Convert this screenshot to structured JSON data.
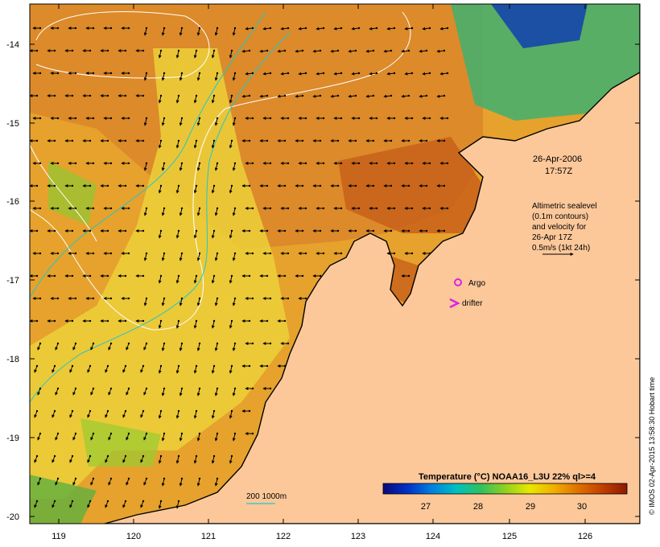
{
  "map": {
    "lon_ticks": [
      "119",
      "120",
      "121",
      "122",
      "123",
      "124",
      "125",
      "126"
    ],
    "lat_ticks": [
      "-14",
      "-15",
      "-16",
      "-17",
      "-18",
      "-19",
      "-20"
    ],
    "date_label": "26-Apr-2006",
    "time_label": "17:57Z",
    "altimetry_note": [
      "Altimetric sealevel",
      "(0.1m contours)",
      "and velocity for",
      "26-Apr 17Z",
      "0.5m/s (1kt 24h)"
    ],
    "legend_argo": "Argo",
    "legend_drifter": "drifter",
    "isobath_label": "200  1000m",
    "colorbar": {
      "title": "Temperature (°C) NOAA16_L3U 22% ql>=4",
      "ticks": [
        "27",
        "28",
        "29",
        "30"
      ],
      "colors": [
        "#0a0a7a",
        "#0030c8",
        "#0080e0",
        "#00c0c0",
        "#30c060",
        "#90d020",
        "#e8e800",
        "#f0b000",
        "#e07000",
        "#c04000",
        "#8a1a00"
      ]
    },
    "credit": "© IMOS 02-Apr-2015 13:58:30 Hobart time",
    "colors": {
      "land": "#fcc89a",
      "ocean_warm": "#d8781e",
      "ocean_mid": "#e8a82c",
      "ocean_cool": "#f0d438",
      "isobath": "#20c8c8",
      "contour": "#ffffff",
      "argo": "#e020e0"
    }
  }
}
